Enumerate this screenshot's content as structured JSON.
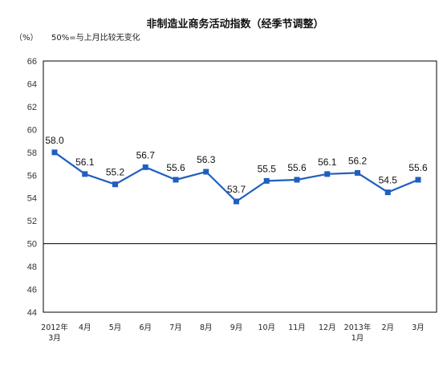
{
  "chart_data": {
    "type": "line",
    "title": "非制造业商务活动指数（经季节调整）",
    "unit_label": "（%）",
    "note": "50%=与上月比较无变化",
    "categories": [
      [
        "2012年",
        "3月"
      ],
      [
        "4月"
      ],
      [
        "5月"
      ],
      [
        "6月"
      ],
      [
        "7月"
      ],
      [
        "8月"
      ],
      [
        "9月"
      ],
      [
        "10月"
      ],
      [
        "11月"
      ],
      [
        "12月"
      ],
      [
        "2013年",
        "1月"
      ],
      [
        "2月"
      ],
      [
        "3月"
      ]
    ],
    "values": [
      58.0,
      56.1,
      55.2,
      56.7,
      55.6,
      56.3,
      53.7,
      55.5,
      55.6,
      56.1,
      56.2,
      54.5,
      55.6
    ],
    "value_labels": [
      "58.0",
      "56.1",
      "55.2",
      "56.7",
      "55.6",
      "56.3",
      "53.7",
      "55.5",
      "55.6",
      "56.1",
      "56.2",
      "54.5",
      "55.6"
    ],
    "ylim": [
      44,
      66
    ],
    "yticks": [
      44,
      46,
      48,
      50,
      52,
      54,
      56,
      58,
      60,
      62,
      64,
      66
    ],
    "reference_line": 50,
    "grid": false,
    "colors": {
      "line": "#1f5fbf",
      "marker": "#1f5fbf",
      "frame": "#000000"
    }
  }
}
